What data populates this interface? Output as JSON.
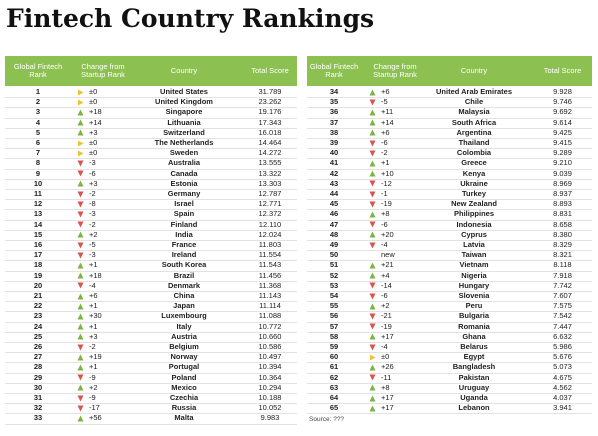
{
  "title": "Fintech Country Rankings",
  "tables": [
    {
      "headers": [
        "Global Fintech Rank",
        "Change from Startup Rank",
        "Country",
        "Total Score"
      ],
      "rows": [
        [
          "1",
          "±0",
          "United States",
          "31.789"
        ],
        [
          "2",
          "±0",
          "United Kingdom",
          "23.262"
        ],
        [
          "3",
          "+18",
          "Singapore",
          "19.176"
        ],
        [
          "4",
          "+14",
          "Lithuania",
          "17.343"
        ],
        [
          "5",
          "+3",
          "Switzerland",
          "16.018"
        ],
        [
          "6",
          "±0",
          "The Netherlands",
          "14.464"
        ],
        [
          "7",
          "±0",
          "Sweden",
          "14.272"
        ],
        [
          "8",
          "-3",
          "Australia",
          "13.555"
        ],
        [
          "9",
          "-6",
          "Canada",
          "13.322"
        ],
        [
          "10",
          "+3",
          "Estonia",
          "13.303"
        ],
        [
          "11",
          "-2",
          "Germany",
          "12.787"
        ],
        [
          "12",
          "-8",
          "Israel",
          "12.771"
        ],
        [
          "13",
          "-3",
          "Spain",
          "12.372"
        ],
        [
          "14",
          "-2",
          "Finland",
          "12.110"
        ],
        [
          "15",
          "+2",
          "India",
          "12.024"
        ],
        [
          "16",
          "-5",
          "France",
          "11.803"
        ],
        [
          "17",
          "-3",
          "Ireland",
          "11.554"
        ],
        [
          "18",
          "+1",
          "South Korea",
          "11.543"
        ],
        [
          "19",
          "+18",
          "Brazil",
          "11.456"
        ],
        [
          "20",
          "-4",
          "Denmark",
          "11.368"
        ],
        [
          "21",
          "+6",
          "China",
          "11.143"
        ],
        [
          "22",
          "+1",
          "Japan",
          "11.114"
        ],
        [
          "23",
          "+30",
          "Luxembourg",
          "11.088"
        ],
        [
          "24",
          "+1",
          "Italy",
          "10.772"
        ],
        [
          "25",
          "+3",
          "Austria",
          "10.660"
        ],
        [
          "26",
          "-2",
          "Belgium",
          "10.586"
        ],
        [
          "27",
          "+19",
          "Norway",
          "10.497"
        ],
        [
          "28",
          "+1",
          "Portugal",
          "10.394"
        ],
        [
          "29",
          "-9",
          "Poland",
          "10.364"
        ],
        [
          "30",
          "+2",
          "Mexico",
          "10.294"
        ],
        [
          "31",
          "-9",
          "Czechia",
          "10.188"
        ],
        [
          "32",
          "-17",
          "Russia",
          "10.052"
        ],
        [
          "33",
          "+56",
          "Malta",
          "9.983"
        ]
      ]
    },
    {
      "headers": [
        "Global Fintech Rank",
        "Change from Startup Rank",
        "Country",
        "Total Score"
      ],
      "rows": [
        [
          "34",
          "+6",
          "United Arab Emirates",
          "9.928"
        ],
        [
          "35",
          "-5",
          "Chile",
          "9.746"
        ],
        [
          "36",
          "+11",
          "Malaysia",
          "9.692"
        ],
        [
          "37",
          "+14",
          "South Africa",
          "9.614"
        ],
        [
          "38",
          "+6",
          "Argentina",
          "9.425"
        ],
        [
          "39",
          "-6",
          "Thailand",
          "9.415"
        ],
        [
          "40",
          "-2",
          "Colombia",
          "9.289"
        ],
        [
          "41",
          "+1",
          "Greece",
          "9.210"
        ],
        [
          "42",
          "+10",
          "Kenya",
          "9.039"
        ],
        [
          "43",
          "-12",
          "Ukraine",
          "8.969"
        ],
        [
          "44",
          "-1",
          "Turkey",
          "8.937"
        ],
        [
          "45",
          "-19",
          "New Zealand",
          "8.893"
        ],
        [
          "46",
          "+8",
          "Philippines",
          "8.831"
        ],
        [
          "47",
          "-6",
          "Indonesia",
          "8.658"
        ],
        [
          "48",
          "+20",
          "Cyprus",
          "8.380"
        ],
        [
          "49",
          "-4",
          "Latvia",
          "8.329"
        ],
        [
          "50",
          "new",
          "Taiwan",
          "8.321"
        ],
        [
          "51",
          "+21",
          "Vietnam",
          "8.118"
        ],
        [
          "52",
          "+4",
          "Nigeria",
          "7.918"
        ],
        [
          "53",
          "-14",
          "Hungary",
          "7.742"
        ],
        [
          "54",
          "-6",
          "Slovenia",
          "7.607"
        ],
        [
          "55",
          "+2",
          "Peru",
          "7.575"
        ],
        [
          "56",
          "-21",
          "Bulgaria",
          "7.542"
        ],
        [
          "57",
          "-19",
          "Romania",
          "7.447"
        ],
        [
          "58",
          "+17",
          "Ghana",
          "6.632"
        ],
        [
          "59",
          "-4",
          "Belarus",
          "5.986"
        ],
        [
          "60",
          "±0",
          "Egypt",
          "5.676"
        ],
        [
          "61",
          "+26",
          "Bangladesh",
          "5.073"
        ],
        [
          "62",
          "-11",
          "Pakistan",
          "4.675"
        ],
        [
          "63",
          "+8",
          "Uruguay",
          "4.562"
        ],
        [
          "64",
          "+17",
          "Uganda",
          "4.037"
        ],
        [
          "65",
          "+17",
          "Lebanon",
          "3.941"
        ]
      ]
    }
  ],
  "source": "Source: ???"
}
